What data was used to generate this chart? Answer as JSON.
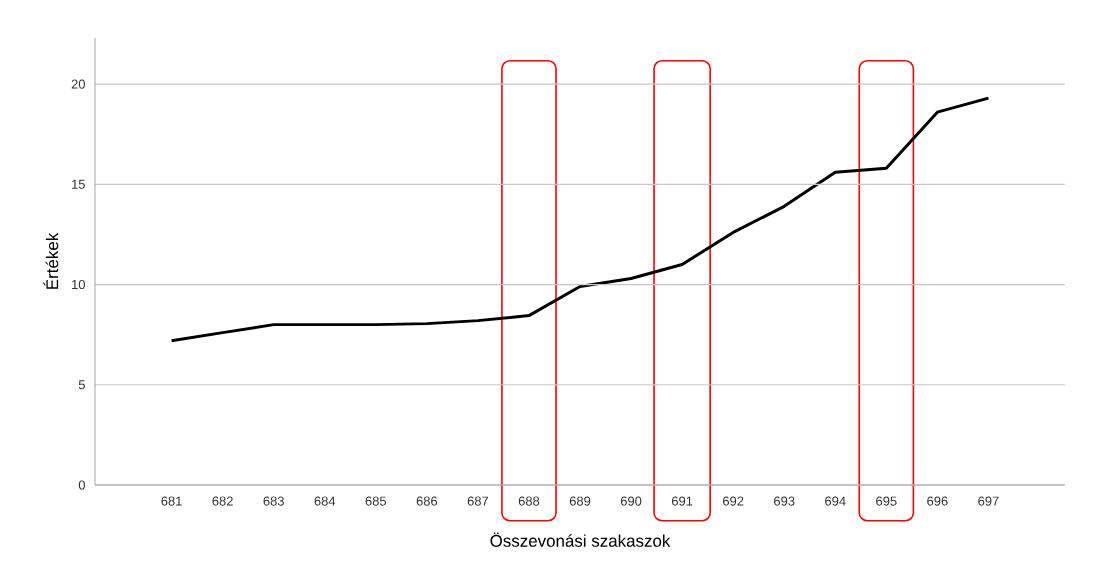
{
  "chart_data": {
    "type": "line",
    "xlabel": "Összevonási szakaszok",
    "ylabel": "Értékek",
    "x": [
      681,
      682,
      683,
      684,
      685,
      686,
      687,
      688,
      689,
      690,
      691,
      692,
      693,
      694,
      695,
      696,
      697
    ],
    "series": [
      {
        "color": "#000000",
        "values": [
          7.2,
          7.6,
          8.0,
          8.0,
          8.0,
          8.05,
          8.2,
          8.45,
          9.9,
          10.3,
          11.0,
          12.6,
          13.9,
          15.6,
          15.8,
          18.6,
          19.3
        ]
      }
    ],
    "xlim": [
      679.5,
      698.5
    ],
    "xticks": [
      681,
      682,
      683,
      684,
      685,
      686,
      687,
      688,
      689,
      690,
      691,
      692,
      693,
      694,
      695,
      696,
      697
    ],
    "ylim": [
      0,
      22.3
    ],
    "yticks": [
      0,
      5,
      10,
      15,
      20
    ],
    "grid": "y",
    "line_style": "solid",
    "marker": "none",
    "bands": [
      {
        "axis": "x",
        "from": 687.47,
        "to": 688.53,
        "color": "#ff0000"
      },
      {
        "axis": "x",
        "from": 690.45,
        "to": 691.55,
        "color": "#ff0000"
      },
      {
        "axis": "x",
        "from": 694.47,
        "to": 695.53,
        "color": "#ff0000"
      }
    ]
  }
}
